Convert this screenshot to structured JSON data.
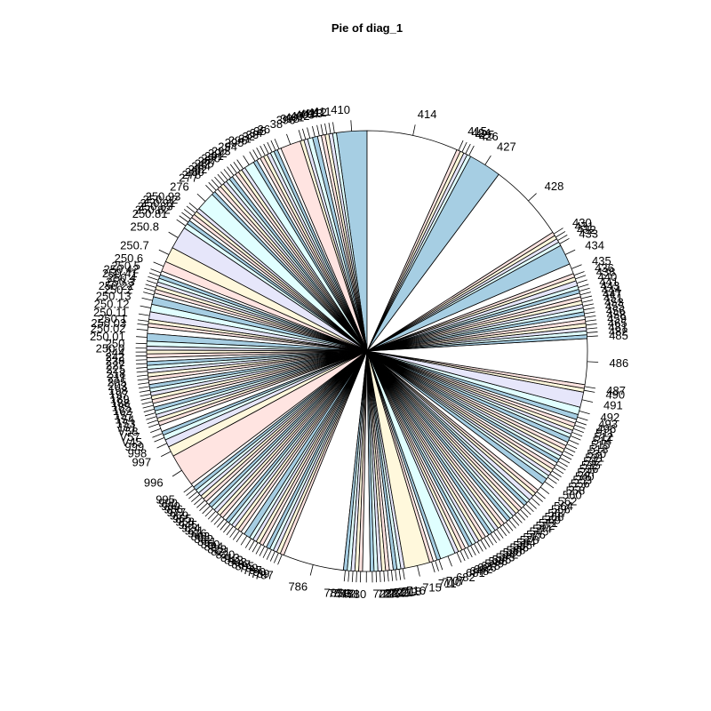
{
  "chart_data": {
    "type": "pie",
    "title": "Pie of diag_1",
    "colors": [
      "#a6cee3",
      "#e0ffff",
      "#e6e6fa",
      "#fff8dc",
      "#ffe4e1",
      "#ffffff"
    ],
    "slices": [
      {
        "label": "410",
        "value": 2.4
      },
      {
        "label": "411",
        "value": 0.3
      },
      {
        "label": "412",
        "value": 0.3
      },
      {
        "label": "413",
        "value": 0.3
      },
      {
        "label": "404",
        "value": 0.3
      },
      {
        "label": "403",
        "value": 0.3
      },
      {
        "label": "402",
        "value": 0.4
      },
      {
        "label": "401",
        "value": 0.4
      },
      {
        "label": "398",
        "value": 0.3
      },
      {
        "label": "396",
        "value": 0.3
      },
      {
        "label": "38",
        "value": 1.6
      },
      {
        "label": "36",
        "value": 0.3
      },
      {
        "label": "35",
        "value": 0.3
      },
      {
        "label": "34",
        "value": 0.3
      },
      {
        "label": "33",
        "value": 0.3
      },
      {
        "label": "32",
        "value": 0.3
      },
      {
        "label": "31",
        "value": 0.3
      },
      {
        "label": "296",
        "value": 0.3
      },
      {
        "label": "295",
        "value": 0.3
      },
      {
        "label": "294",
        "value": 0.8
      },
      {
        "label": "293",
        "value": 0.3
      },
      {
        "label": "292",
        "value": 0.3
      },
      {
        "label": "291",
        "value": 0.3
      },
      {
        "label": "290",
        "value": 0.3
      },
      {
        "label": "287",
        "value": 0.3
      },
      {
        "label": "285",
        "value": 0.3
      },
      {
        "label": "284",
        "value": 0.3
      },
      {
        "label": "282",
        "value": 0.3
      },
      {
        "label": "280",
        "value": 0.3
      },
      {
        "label": "278",
        "value": 0.3
      },
      {
        "label": "277",
        "value": 0.3
      },
      {
        "label": "276",
        "value": 1.5
      },
      {
        "label": "250.93",
        "value": 0.3
      },
      {
        "label": "250.92",
        "value": 0.3
      },
      {
        "label": "250.91",
        "value": 0.3
      },
      {
        "label": "250.83",
        "value": 0.3
      },
      {
        "label": "250.82",
        "value": 0.3
      },
      {
        "label": "250.81",
        "value": 0.4
      },
      {
        "label": "250.8",
        "value": 1.8
      },
      {
        "label": "250.7",
        "value": 1.2
      },
      {
        "label": "250.6",
        "value": 0.8
      },
      {
        "label": "250.5",
        "value": 0.3
      },
      {
        "label": "250.42",
        "value": 0.3
      },
      {
        "label": "250.41",
        "value": 0.3
      },
      {
        "label": "250.4",
        "value": 0.3
      },
      {
        "label": "250.3",
        "value": 0.3
      },
      {
        "label": "250.22",
        "value": 0.3
      },
      {
        "label": "250.2",
        "value": 0.3
      },
      {
        "label": "250.13",
        "value": 0.6
      },
      {
        "label": "250.12",
        "value": 0.6
      },
      {
        "label": "250.11",
        "value": 0.6
      },
      {
        "label": "250.1",
        "value": 0.3
      },
      {
        "label": "250.03",
        "value": 0.3
      },
      {
        "label": "250.02",
        "value": 0.5
      },
      {
        "label": "250.01",
        "value": 0.6
      },
      {
        "label": "250",
        "value": 0.4
      },
      {
        "label": "250.0",
        "value": 0.3
      },
      {
        "label": "244",
        "value": 0.3
      },
      {
        "label": "242",
        "value": 0.3
      },
      {
        "label": "238",
        "value": 0.3
      },
      {
        "label": "227",
        "value": 0.3
      },
      {
        "label": "225",
        "value": 0.3
      },
      {
        "label": "218",
        "value": 0.3
      },
      {
        "label": "211",
        "value": 0.3
      },
      {
        "label": "205",
        "value": 0.3
      },
      {
        "label": "203",
        "value": 0.3
      },
      {
        "label": "198",
        "value": 0.3
      },
      {
        "label": "197",
        "value": 0.3
      },
      {
        "label": "189",
        "value": 0.3
      },
      {
        "label": "188",
        "value": 0.3
      },
      {
        "label": "185",
        "value": 0.3
      },
      {
        "label": "162",
        "value": 0.3
      },
      {
        "label": "157",
        "value": 0.3
      },
      {
        "label": "154",
        "value": 0.3
      },
      {
        "label": "153",
        "value": 0.3
      },
      {
        "label": "151",
        "value": 0.3
      },
      {
        "label": "V58",
        "value": 0.3
      },
      {
        "label": "V57",
        "value": 0.5
      },
      {
        "label": "V45",
        "value": 0.3
      },
      {
        "label": "999",
        "value": 0.4
      },
      {
        "label": "998",
        "value": 0.6
      },
      {
        "label": "997",
        "value": 0.8
      },
      {
        "label": "996",
        "value": 2.6
      },
      {
        "label": "995",
        "value": 0.3
      },
      {
        "label": "990",
        "value": 0.3
      },
      {
        "label": "989",
        "value": 0.3
      },
      {
        "label": "986",
        "value": 0.3
      },
      {
        "label": "977",
        "value": 0.3
      },
      {
        "label": "969",
        "value": 0.3
      },
      {
        "label": "965",
        "value": 0.3
      },
      {
        "label": "958",
        "value": 0.3
      },
      {
        "label": "945",
        "value": 0.3
      },
      {
        "label": "924",
        "value": 0.3
      },
      {
        "label": "921",
        "value": 0.3
      },
      {
        "label": "916",
        "value": 0.3
      },
      {
        "label": "883",
        "value": 0.3
      },
      {
        "label": "882",
        "value": 0.3
      },
      {
        "label": "851",
        "value": 0.3
      },
      {
        "label": "850",
        "value": 0.3
      },
      {
        "label": "824",
        "value": 0.3
      },
      {
        "label": "823",
        "value": 0.3
      },
      {
        "label": "821",
        "value": 0.3
      },
      {
        "label": "820",
        "value": 0.5
      },
      {
        "label": "813",
        "value": 0.3
      },
      {
        "label": "812",
        "value": 0.3
      },
      {
        "label": "808",
        "value": 0.3
      },
      {
        "label": "807",
        "value": 0.3
      },
      {
        "label": "805",
        "value": 0.3
      },
      {
        "label": "799",
        "value": 0.3
      },
      {
        "label": "797",
        "value": 0.3
      },
      {
        "label": "790",
        "value": 0.3
      },
      {
        "label": "789",
        "value": 0.3
      },
      {
        "label": "787",
        "value": 0.3
      },
      {
        "label": "786",
        "value": 4.8
      },
      {
        "label": "785",
        "value": 0.3
      },
      {
        "label": "784",
        "value": 0.3
      },
      {
        "label": "783",
        "value": 0.3
      },
      {
        "label": "782",
        "value": 0.3
      },
      {
        "label": "781",
        "value": 0.3
      },
      {
        "label": "780",
        "value": 0.6
      },
      {
        "label": "728",
        "value": 0.3
      },
      {
        "label": "727",
        "value": 0.3
      },
      {
        "label": "726",
        "value": 0.3
      },
      {
        "label": "724",
        "value": 0.3
      },
      {
        "label": "722",
        "value": 0.3
      },
      {
        "label": "721",
        "value": 0.3
      },
      {
        "label": "719",
        "value": 0.3
      },
      {
        "label": "718",
        "value": 0.3
      },
      {
        "label": "716",
        "value": 0.3
      },
      {
        "label": "715",
        "value": 2.0
      },
      {
        "label": "711",
        "value": 0.3
      },
      {
        "label": "710",
        "value": 0.3
      },
      {
        "label": "707",
        "value": 0.3
      },
      {
        "label": "682",
        "value": 1.2
      },
      {
        "label": "681",
        "value": 0.3
      },
      {
        "label": "648",
        "value": 0.3
      },
      {
        "label": "642",
        "value": 0.3
      },
      {
        "label": "626",
        "value": 0.3
      },
      {
        "label": "618",
        "value": 0.3
      },
      {
        "label": "599",
        "value": 0.3
      },
      {
        "label": "596",
        "value": 0.3
      },
      {
        "label": "595",
        "value": 0.3
      },
      {
        "label": "593",
        "value": 0.3
      },
      {
        "label": "592",
        "value": 0.3
      },
      {
        "label": "590",
        "value": 0.3
      },
      {
        "label": "588",
        "value": 0.3
      },
      {
        "label": "586",
        "value": 0.3
      },
      {
        "label": "585",
        "value": 0.3
      },
      {
        "label": "584",
        "value": 0.3
      },
      {
        "label": "578",
        "value": 0.3
      },
      {
        "label": "577",
        "value": 0.3
      },
      {
        "label": "576",
        "value": 0.3
      },
      {
        "label": "575",
        "value": 0.3
      },
      {
        "label": "574",
        "value": 0.3
      },
      {
        "label": "572",
        "value": 0.3
      },
      {
        "label": "571",
        "value": 0.3
      },
      {
        "label": "569",
        "value": 0.3
      },
      {
        "label": "568",
        "value": 0.3
      },
      {
        "label": "567",
        "value": 0.4
      },
      {
        "label": "566",
        "value": 0.3
      },
      {
        "label": "564",
        "value": 0.3
      },
      {
        "label": "562",
        "value": 0.6
      },
      {
        "label": "560",
        "value": 0.5
      },
      {
        "label": "558",
        "value": 0.3
      },
      {
        "label": "557",
        "value": 0.3
      },
      {
        "label": "556",
        "value": 0.3
      },
      {
        "label": "553",
        "value": 0.3
      },
      {
        "label": "540",
        "value": 0.3
      },
      {
        "label": "537",
        "value": 0.3
      },
      {
        "label": "536",
        "value": 0.3
      },
      {
        "label": "535",
        "value": 0.3
      },
      {
        "label": "532",
        "value": 0.3
      },
      {
        "label": "531",
        "value": 0.3
      },
      {
        "label": "530",
        "value": 0.3
      },
      {
        "label": "518",
        "value": 0.4
      },
      {
        "label": "515",
        "value": 0.3
      },
      {
        "label": "514",
        "value": 0.3
      },
      {
        "label": "512",
        "value": 0.3
      },
      {
        "label": "511",
        "value": 0.3
      },
      {
        "label": "496",
        "value": 0.3
      },
      {
        "label": "493",
        "value": 0.4
      },
      {
        "label": "492",
        "value": 0.6
      },
      {
        "label": "491",
        "value": 1.2
      },
      {
        "label": "490",
        "value": 0.3
      },
      {
        "label": "487",
        "value": 0.3
      },
      {
        "label": "486",
        "value": 3.6
      },
      {
        "label": "485",
        "value": 0.3
      },
      {
        "label": "482",
        "value": 0.3
      },
      {
        "label": "481",
        "value": 0.3
      },
      {
        "label": "465",
        "value": 0.3
      },
      {
        "label": "459",
        "value": 0.3
      },
      {
        "label": "458",
        "value": 0.3
      },
      {
        "label": "456",
        "value": 0.3
      },
      {
        "label": "455",
        "value": 0.3
      },
      {
        "label": "453",
        "value": 0.3
      },
      {
        "label": "451",
        "value": 0.3
      },
      {
        "label": "447",
        "value": 0.3
      },
      {
        "label": "444",
        "value": 0.3
      },
      {
        "label": "443",
        "value": 0.3
      },
      {
        "label": "441",
        "value": 0.3
      },
      {
        "label": "440",
        "value": 0.4
      },
      {
        "label": "438",
        "value": 0.3
      },
      {
        "label": "436",
        "value": 0.3
      },
      {
        "label": "435",
        "value": 0.8
      },
      {
        "label": "434",
        "value": 1.6
      },
      {
        "label": "433",
        "value": 0.3
      },
      {
        "label": "432",
        "value": 0.3
      },
      {
        "label": "431",
        "value": 0.3
      },
      {
        "label": "430",
        "value": 0.3
      },
      {
        "label": "428",
        "value": 6.2
      },
      {
        "label": "427",
        "value": 2.6
      },
      {
        "label": "426",
        "value": 0.3
      },
      {
        "label": "425",
        "value": 0.3
      },
      {
        "label": "424",
        "value": 0.3
      },
      {
        "label": "415",
        "value": 0.3
      },
      {
        "label": "414",
        "value": 7.2
      }
    ]
  }
}
